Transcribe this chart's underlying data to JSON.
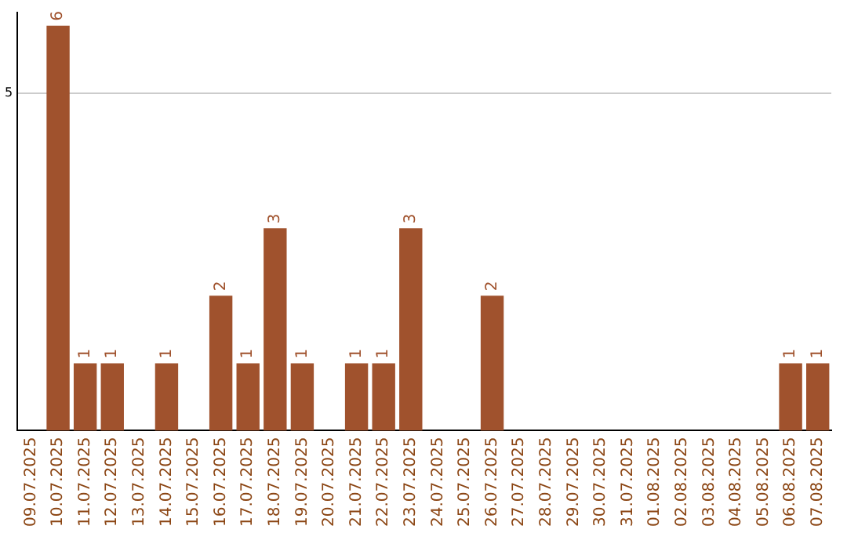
{
  "chart_data": {
    "type": "bar",
    "categories": [
      "09.07.2025",
      "10.07.2025",
      "11.07.2025",
      "12.07.2025",
      "13.07.2025",
      "14.07.2025",
      "15.07.2025",
      "16.07.2025",
      "17.07.2025",
      "18.07.2025",
      "19.07.2025",
      "20.07.2025",
      "21.07.2025",
      "22.07.2025",
      "23.07.2025",
      "24.07.2025",
      "25.07.2025",
      "26.07.2025",
      "27.07.2025",
      "28.07.2025",
      "29.07.2025",
      "30.07.2025",
      "31.07.2025",
      "01.08.2025",
      "02.08.2025",
      "03.08.2025",
      "04.08.2025",
      "05.08.2025",
      "06.08.2025",
      "07.08.2025"
    ],
    "values": [
      0,
      6,
      1,
      1,
      0,
      1,
      0,
      2,
      1,
      3,
      1,
      0,
      1,
      1,
      3,
      0,
      0,
      2,
      0,
      0,
      0,
      0,
      0,
      0,
      0,
      0,
      0,
      0,
      1,
      1
    ],
    "value_labels": [
      null,
      "6",
      "1",
      "1",
      null,
      "1",
      null,
      "2",
      "1",
      "3",
      "1",
      null,
      "1",
      "1",
      "3",
      null,
      null,
      "2",
      null,
      null,
      null,
      null,
      null,
      null,
      null,
      null,
      null,
      null,
      "1",
      "1"
    ],
    "color": "#a0522d",
    "ylim": [
      0,
      6.2
    ],
    "yticks": [
      5
    ],
    "grid": "y",
    "legend": false
  }
}
